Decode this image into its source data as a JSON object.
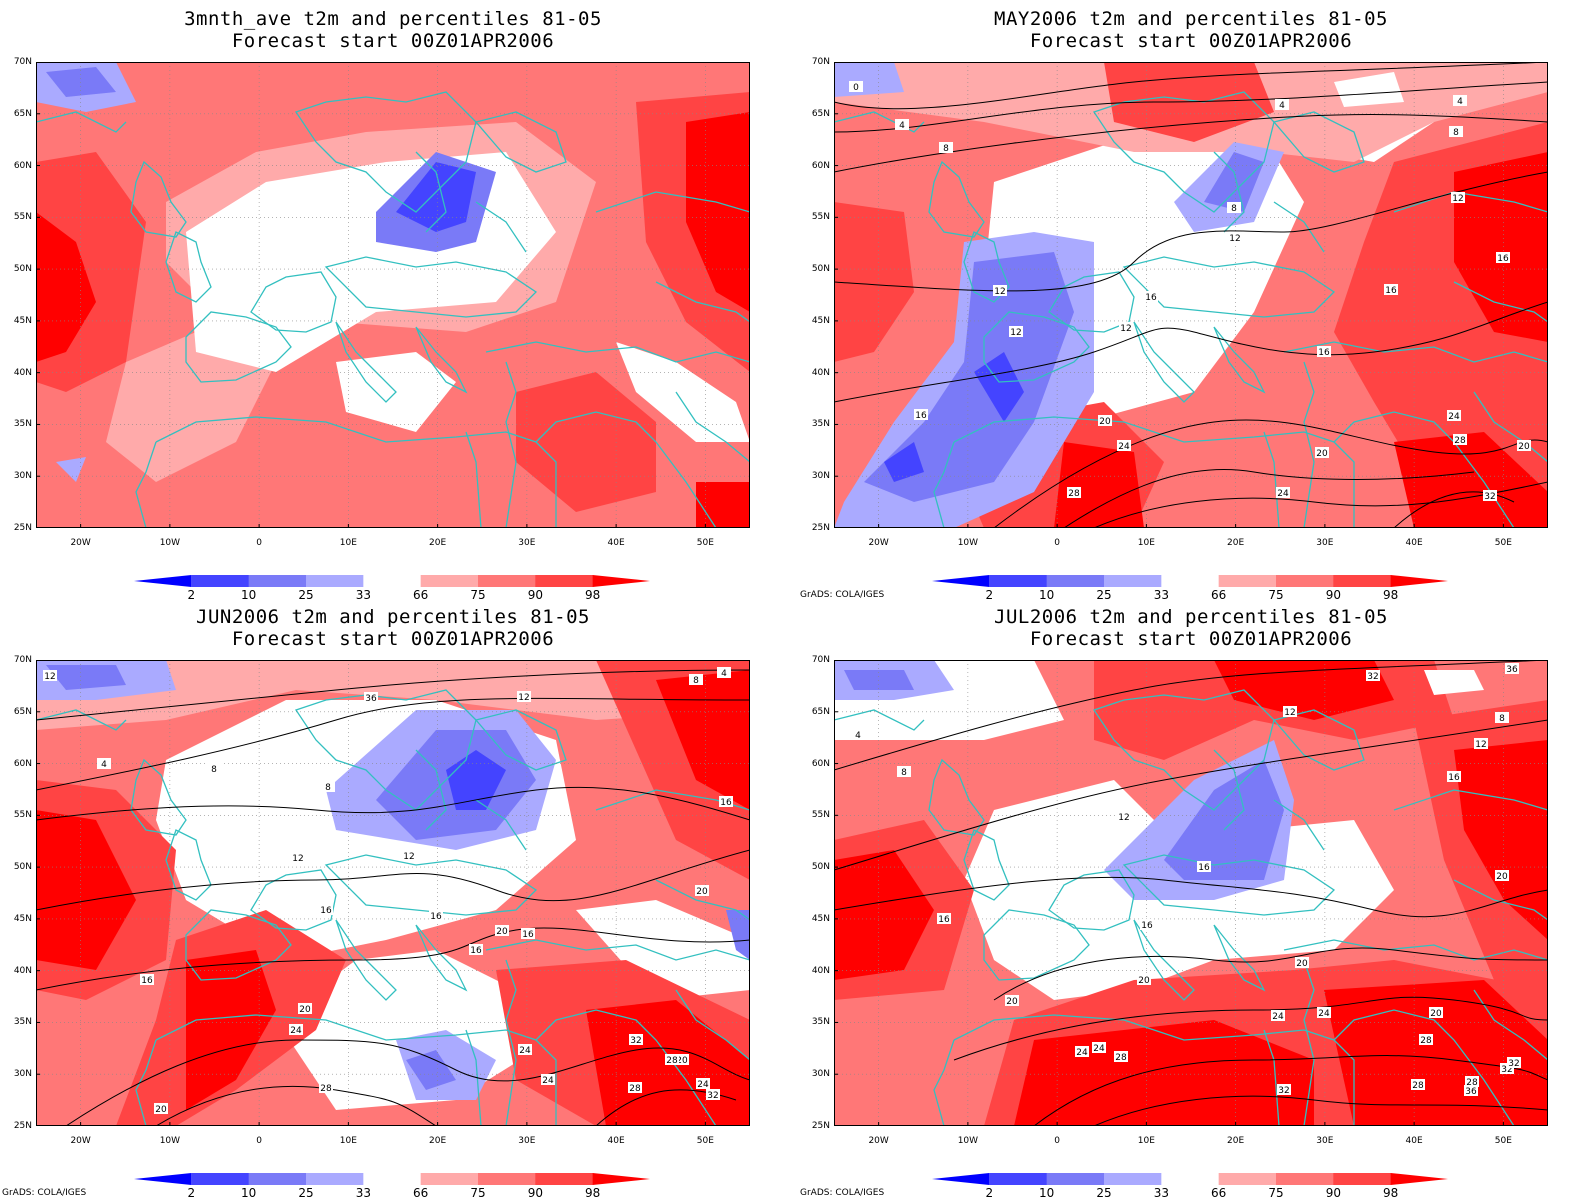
{
  "grid": {
    "lat_labels": [
      "70N",
      "65N",
      "60N",
      "55N",
      "50N",
      "45N",
      "40N",
      "35N",
      "30N",
      "25N"
    ],
    "lon_labels": [
      "20W",
      "10W",
      "0",
      "10E",
      "20E",
      "30E",
      "40E",
      "50E"
    ],
    "lat_values": [
      70,
      65,
      60,
      55,
      50,
      45,
      40,
      35,
      30,
      25
    ],
    "lon_values": [
      -20,
      -10,
      0,
      10,
      20,
      30,
      40,
      50
    ],
    "extent": {
      "lon_min": -25,
      "lon_max": 55,
      "lat_min": 25,
      "lat_max": 70
    }
  },
  "colorbar": {
    "labels": [
      "2",
      "10",
      "25",
      "33",
      "66",
      "75",
      "90",
      "98"
    ],
    "colors": [
      "#0000ff",
      "#4444ff",
      "#7a7af7",
      "#aaaaff",
      "#ffffff",
      "#ffaaaa",
      "#ff7777",
      "#ff4444",
      "#ff0000"
    ],
    "land_outline_color": "#33c0c0"
  },
  "credit": "GrADS: COLA/IGES",
  "panels": [
    {
      "title": "3mnth_ave t2m and percentiles 81-05",
      "subtitle": "Forecast start 00Z01APR2006",
      "show_credit": false,
      "has_contours": false,
      "contour_labels": []
    },
    {
      "title": "MAY2006 t2m and percentiles 81-05",
      "subtitle": "Forecast start 00Z01APR2006",
      "show_credit": true,
      "has_contours": true,
      "contour_labels": [
        "0",
        "4",
        "4",
        "4",
        "8",
        "8",
        "8",
        "12",
        "12",
        "12",
        "12",
        "12",
        "16",
        "16",
        "16",
        "16",
        "16",
        "20",
        "20",
        "20",
        "24",
        "24",
        "24",
        "28",
        "28",
        "32"
      ]
    },
    {
      "title": "JUN2006 t2m and percentiles 81-05",
      "subtitle": "Forecast start 00Z01APR2006",
      "show_credit": true,
      "has_contours": true,
      "contour_labels": [
        "4",
        "4",
        "8",
        "8",
        "8",
        "12",
        "12",
        "12",
        "12",
        "16",
        "16",
        "16",
        "16",
        "16",
        "16",
        "20",
        "20",
        "20",
        "20",
        "20",
        "24",
        "24",
        "24",
        "24",
        "28",
        "28",
        "28",
        "32",
        "32",
        "36"
      ]
    },
    {
      "title": "JUL2006 t2m and percentiles 81-05",
      "subtitle": "Forecast start 00Z01APR2006",
      "show_credit": true,
      "has_contours": true,
      "contour_labels": [
        "4",
        "8",
        "8",
        "12",
        "12",
        "12",
        "16",
        "16",
        "16",
        "16",
        "20",
        "20",
        "20",
        "20",
        "20",
        "24",
        "24",
        "24",
        "24",
        "28",
        "28",
        "28",
        "28",
        "32",
        "32",
        "32",
        "32",
        "36",
        "36"
      ]
    }
  ]
}
